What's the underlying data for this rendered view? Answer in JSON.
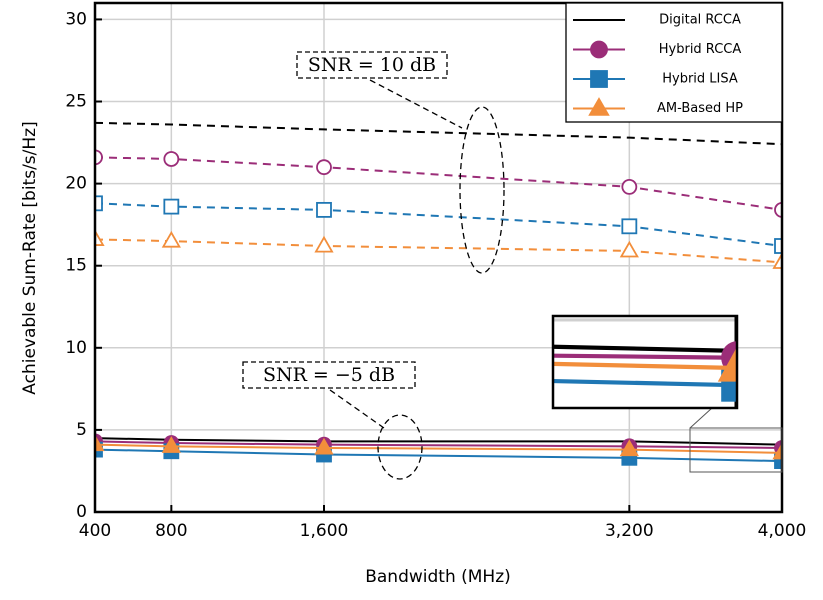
{
  "chart_data": {
    "type": "line",
    "x_label": "Bandwidth (MHz)",
    "y_label": "Achievable Sum-Rate [bits/s/Hz]",
    "x": [
      400,
      800,
      1600,
      3200,
      4000
    ],
    "xlim": [
      400,
      4000
    ],
    "xticks": [
      400,
      800,
      {
        "value": 1600,
        "label": "1,600"
      },
      {
        "value": 3200,
        "label": "3,200"
      },
      {
        "value": 4000,
        "label": "4,000"
      }
    ],
    "ylim": [
      0,
      31
    ],
    "yticks": [
      0,
      5,
      10,
      15,
      20,
      25,
      30
    ],
    "grid": true,
    "legend": "upper right",
    "groups": [
      {
        "label": "SNR = 10 dB",
        "line": "dashed",
        "markers": "hollow"
      },
      {
        "label": "SNR = −5 dB",
        "line": "solid",
        "markers": "filled"
      }
    ],
    "series": [
      {
        "name": "Digital RCCA",
        "color": "#000000",
        "marker": "none",
        "values": [
          [
            23.7,
            23.6,
            23.3,
            22.8,
            22.4
          ],
          [
            4.5,
            4.4,
            4.3,
            4.3,
            4.1
          ]
        ]
      },
      {
        "name": "Hybrid RCCA",
        "color": "#9b2d78",
        "marker": "circle",
        "values": [
          [
            21.6,
            21.5,
            21.0,
            19.8,
            18.4
          ],
          [
            4.3,
            4.2,
            4.1,
            4.0,
            3.9
          ]
        ]
      },
      {
        "name": "Hybrid LISA",
        "color": "#1f77b4",
        "marker": "square",
        "values": [
          [
            18.8,
            18.6,
            18.4,
            17.4,
            16.2
          ],
          [
            3.8,
            3.7,
            3.5,
            3.3,
            3.1
          ]
        ]
      },
      {
        "name": "AM-Based HP",
        "color": "#f28e3b",
        "marker": "triangle",
        "values": [
          [
            16.6,
            16.5,
            16.2,
            15.9,
            15.2
          ],
          [
            4.1,
            4.0,
            3.9,
            3.8,
            3.6
          ]
        ]
      }
    ]
  }
}
